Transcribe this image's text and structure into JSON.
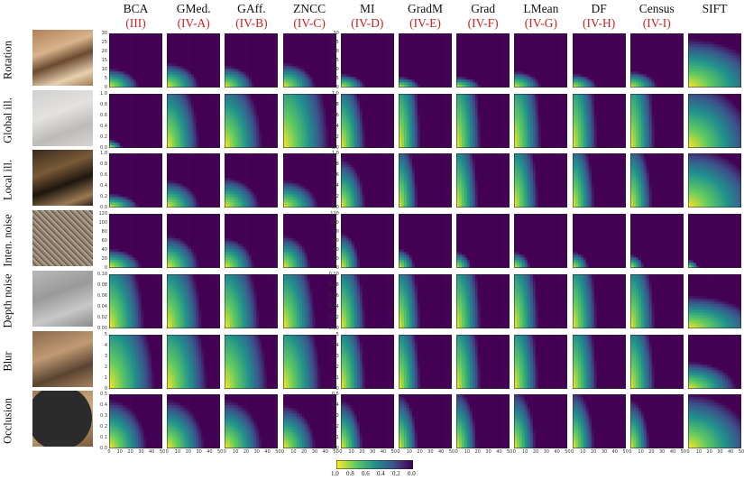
{
  "columns": [
    {
      "method": "BCA",
      "ref": "(III)"
    },
    {
      "method": "GMed.",
      "ref": "(IV-A)"
    },
    {
      "method": "GAff.",
      "ref": "(IV-B)"
    },
    {
      "method": "ZNCC",
      "ref": "(IV-C)"
    },
    {
      "method": "MI",
      "ref": "(IV-D)"
    },
    {
      "method": "GradM",
      "ref": "(IV-E)"
    },
    {
      "method": "Grad",
      "ref": "(IV-F)"
    },
    {
      "method": "LMean",
      "ref": "(IV-G)"
    },
    {
      "method": "DF",
      "ref": "(IV-H)"
    },
    {
      "method": "Census",
      "ref": "(IV-I)"
    },
    {
      "method": "SIFT",
      "ref": ""
    }
  ],
  "rows": [
    {
      "label": "Rotation",
      "yticks": [
        "0",
        "5",
        "10",
        "15",
        "20",
        "25",
        "30"
      ]
    },
    {
      "label": "Global ill.",
      "yticks": [
        "0.0",
        "0.2",
        "0.4",
        "0.6",
        "0.8",
        "1.0"
      ]
    },
    {
      "label": "Local ill.",
      "yticks": [
        "0.0",
        "0.2",
        "0.4",
        "0.6",
        "0.8",
        "1.0"
      ]
    },
    {
      "label": "Inten. noise",
      "yticks": [
        "0",
        "20",
        "40",
        "60",
        "80",
        "100",
        "120"
      ]
    },
    {
      "label": "Depth noise",
      "yticks": [
        "0.00",
        "0.02",
        "0.04",
        "0.06",
        "0.08",
        "0.10"
      ]
    },
    {
      "label": "Blur",
      "yticks": [
        "0",
        "1",
        "2",
        "3",
        "4",
        "5"
      ]
    },
    {
      "label": "Occlusion",
      "yticks": [
        "0.0",
        "0.1",
        "0.2",
        "0.3",
        "0.4",
        "0.5"
      ]
    }
  ],
  "xticks": [
    "0",
    "10",
    "20",
    "30",
    "40",
    "50"
  ],
  "colorbar": {
    "labels": [
      "1.0",
      "0.8",
      "0.6",
      "0.4",
      "0.2",
      "0.0"
    ]
  },
  "colors": {
    "high": "#fde725",
    "mid": "#21918c",
    "low": "#440154",
    "method_ref": "#cc2222"
  },
  "chart_data": {
    "type": "heatmap",
    "title": "",
    "xlabel": "",
    "x_range": [
      0,
      50
    ],
    "colorscale": "viridis",
    "value_range": [
      0.0,
      1.0
    ],
    "note": "Each cell is a heatmap of success rate (1.0 yellow to 0.0 purple) over x in [0,50] and the row's perturbation parameter (y). Values per panel are described by a radial falloff from the bottom-left corner with parameters x_extent (fraction of x range where value reaches ~0) and y_extent (fraction of y range).",
    "panels": [
      {
        "row": "Rotation",
        "y_range": [
          0,
          30
        ],
        "cells": [
          [
            0.55,
            0.35
          ],
          [
            0.6,
            0.45
          ],
          [
            0.55,
            0.4
          ],
          [
            0.6,
            0.45
          ],
          [
            0.45,
            0.25
          ],
          [
            0.4,
            0.2
          ],
          [
            0.45,
            0.2
          ],
          [
            0.5,
            0.3
          ],
          [
            0.45,
            0.25
          ],
          [
            0.5,
            0.3
          ],
          [
            1.4,
            0.9
          ]
        ]
      },
      {
        "row": "Global ill.",
        "y_range": [
          0.0,
          1.0
        ],
        "cells": [
          [
            0.25,
            0.15
          ],
          [
            0.6,
            1.4
          ],
          [
            0.7,
            1.4
          ],
          [
            0.85,
            2.0
          ],
          [
            0.45,
            1.4
          ],
          [
            0.4,
            2.0
          ],
          [
            0.45,
            2.0
          ],
          [
            0.5,
            2.0
          ],
          [
            0.45,
            2.0
          ],
          [
            0.45,
            2.0
          ],
          [
            1.2,
            1.2
          ]
        ]
      },
      {
        "row": "Local ill.",
        "y_range": [
          0.0,
          1.0
        ],
        "cells": [
          [
            0.55,
            0.25
          ],
          [
            0.6,
            0.5
          ],
          [
            0.65,
            0.55
          ],
          [
            0.65,
            0.5
          ],
          [
            0.45,
            0.9
          ],
          [
            0.35,
            1.3
          ],
          [
            0.4,
            1.6
          ],
          [
            0.45,
            1.6
          ],
          [
            0.4,
            1.4
          ],
          [
            0.4,
            1.3
          ],
          [
            1.3,
            1.1
          ]
        ]
      },
      {
        "row": "Inten. noise",
        "y_range": [
          0,
          120
        ],
        "cells": [
          [
            0.6,
            0.35
          ],
          [
            0.6,
            0.6
          ],
          [
            0.55,
            0.55
          ],
          [
            0.5,
            0.6
          ],
          [
            0.35,
            0.65
          ],
          [
            0.3,
            0.35
          ],
          [
            0.28,
            0.3
          ],
          [
            0.3,
            0.3
          ],
          [
            0.3,
            0.3
          ],
          [
            0.25,
            0.25
          ],
          [
            0.2,
            0.15
          ]
        ]
      },
      {
        "row": "Depth noise",
        "y_range": [
          0.0,
          0.1
        ],
        "cells": [
          [
            0.65,
            1.6
          ],
          [
            0.65,
            1.6
          ],
          [
            0.65,
            1.6
          ],
          [
            0.6,
            1.6
          ],
          [
            0.45,
            1.5
          ],
          [
            0.4,
            1.5
          ],
          [
            0.45,
            1.8
          ],
          [
            0.45,
            1.8
          ],
          [
            0.45,
            1.8
          ],
          [
            0.45,
            1.6
          ],
          [
            1.3,
            0.6
          ]
        ]
      },
      {
        "row": "Blur",
        "y_range": [
          0,
          5
        ],
        "cells": [
          [
            0.85,
            1.8
          ],
          [
            0.75,
            1.8
          ],
          [
            0.8,
            1.8
          ],
          [
            0.7,
            1.8
          ],
          [
            0.45,
            1.6
          ],
          [
            0.4,
            1.6
          ],
          [
            0.45,
            1.8
          ],
          [
            0.45,
            1.8
          ],
          [
            0.45,
            1.8
          ],
          [
            0.45,
            1.6
          ],
          [
            0.9,
            0.5
          ]
        ]
      },
      {
        "row": "Occlusion",
        "y_range": [
          0.0,
          0.5
        ],
        "cells": [
          [
            0.7,
            0.9
          ],
          [
            0.7,
            0.9
          ],
          [
            0.7,
            0.9
          ],
          [
            0.6,
            0.8
          ],
          [
            0.4,
            0.9
          ],
          [
            0.35,
            1.0
          ],
          [
            0.38,
            1.1
          ],
          [
            0.4,
            1.1
          ],
          [
            0.4,
            1.1
          ],
          [
            0.35,
            0.9
          ],
          [
            1.2,
            1.0
          ]
        ]
      }
    ]
  }
}
